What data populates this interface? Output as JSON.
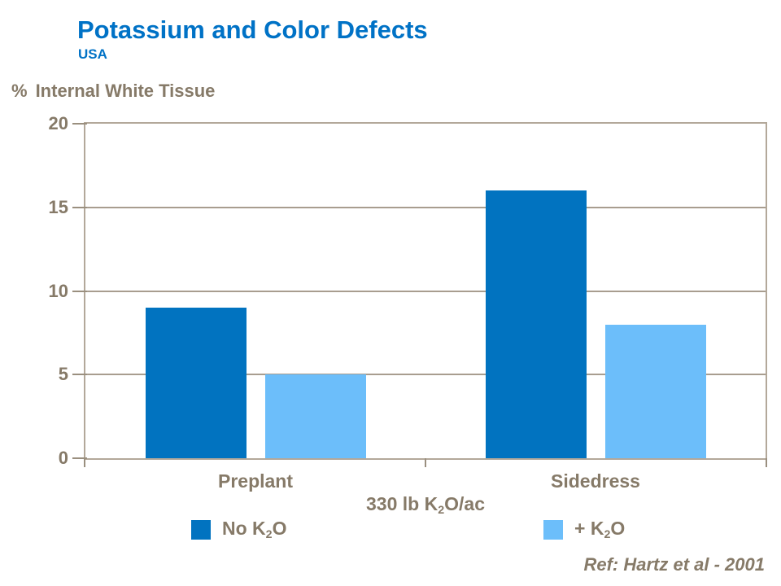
{
  "title": "Potassium and Color Defects",
  "subtitle": "USA",
  "y_axis_title": {
    "symbol": "%",
    "text": "Internal White Tissue"
  },
  "x_axis_label": {
    "pre": "330 lb K",
    "sub": "2",
    "post": "O/ac"
  },
  "legend": [
    {
      "pre": "No K",
      "sub": "2",
      "post": "O",
      "color": "#0173C0"
    },
    {
      "pre": "+ K",
      "sub": "2",
      "post": "O",
      "color": "#6CBEFA"
    }
  ],
  "reference": "Ref: Hartz et al - 2001",
  "colors": {
    "title_blue": "#0072C6",
    "axis_text": "#867A68",
    "plot_border": "#B3A89A",
    "gridline": "#A89D8F",
    "tick": "#9A8F7F",
    "series_dark_blue": "#0173C0",
    "series_light_blue": "#6CBEFA",
    "background": "#FFFFFF"
  },
  "chart_data": {
    "type": "bar",
    "title": "Potassium and Color Defects",
    "subtitle": "USA",
    "ylabel": "% Internal White Tissue",
    "xlabel": "330 lb K2O/ac",
    "categories": [
      "Preplant",
      "Sidedress"
    ],
    "series": [
      {
        "name": "No K2O",
        "values": [
          9,
          16
        ],
        "color": "#0173C0"
      },
      {
        "name": "+ K2O",
        "values": [
          5,
          8
        ],
        "color": "#6CBEFA"
      }
    ],
    "ylim": [
      0,
      20
    ],
    "yticks": [
      0,
      5,
      10,
      15,
      20
    ],
    "grid": true,
    "legend_position": "bottom",
    "reference": "Ref: Hartz et al - 2001"
  }
}
